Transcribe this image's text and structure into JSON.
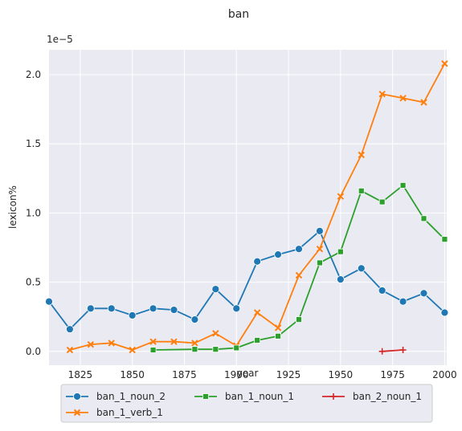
{
  "chart_data": {
    "type": "line",
    "title": "ban",
    "xlabel": "year",
    "ylabel": "lexicon%",
    "y_offset_label": "1e−5",
    "xlim": [
      1810,
      2001
    ],
    "ylim": [
      -0.1,
      2.18
    ],
    "xticks": [
      1825,
      1850,
      1875,
      1900,
      1925,
      1950,
      1975,
      2000
    ],
    "yticks": [
      0.0,
      0.5,
      1.0,
      1.5,
      2.0
    ],
    "ytick_labels": [
      "0.0",
      "0.5",
      "1.0",
      "1.5",
      "2.0"
    ],
    "grid": true,
    "legend_placement": "bottom-center",
    "series": [
      {
        "name": "ban_1_noun_2",
        "color": "#1f77b4",
        "marker": "circle",
        "x": [
          1810,
          1820,
          1830,
          1840,
          1850,
          1860,
          1870,
          1880,
          1890,
          1900,
          1910,
          1920,
          1930,
          1940,
          1950,
          1960,
          1970,
          1980,
          1990,
          2000
        ],
        "y": [
          0.36,
          0.16,
          0.31,
          0.31,
          0.26,
          0.31,
          0.3,
          0.23,
          0.45,
          0.31,
          0.65,
          0.7,
          0.74,
          0.87,
          0.52,
          0.6,
          0.44,
          0.36,
          0.42,
          0.28
        ]
      },
      {
        "name": "ban_1_verb_1",
        "color": "#ff7f0e",
        "marker": "x",
        "x": [
          1820,
          1830,
          1840,
          1850,
          1860,
          1870,
          1880,
          1890,
          1900,
          1910,
          1920,
          1930,
          1940,
          1950,
          1960,
          1970,
          1980,
          1990,
          2000
        ],
        "y": [
          0.01,
          0.05,
          0.06,
          0.01,
          0.07,
          0.07,
          0.06,
          0.13,
          0.04,
          0.28,
          0.17,
          0.55,
          0.74,
          1.12,
          1.42,
          1.86,
          1.83,
          1.8,
          2.08
        ]
      },
      {
        "name": "ban_1_noun_1",
        "color": "#2ca02c",
        "marker": "square",
        "x": [
          1860,
          1880,
          1890,
          1900,
          1910,
          1920,
          1930,
          1940,
          1950,
          1960,
          1970,
          1980,
          1990,
          2000
        ],
        "y": [
          0.01,
          0.015,
          0.015,
          0.025,
          0.08,
          0.11,
          0.23,
          0.64,
          0.72,
          1.16,
          1.08,
          1.2,
          0.96,
          0.81
        ]
      },
      {
        "name": "ban_2_noun_1",
        "color": "#d62728",
        "marker": "plus",
        "x": [
          1970,
          1980
        ],
        "y": [
          0.0,
          0.01
        ]
      }
    ]
  }
}
